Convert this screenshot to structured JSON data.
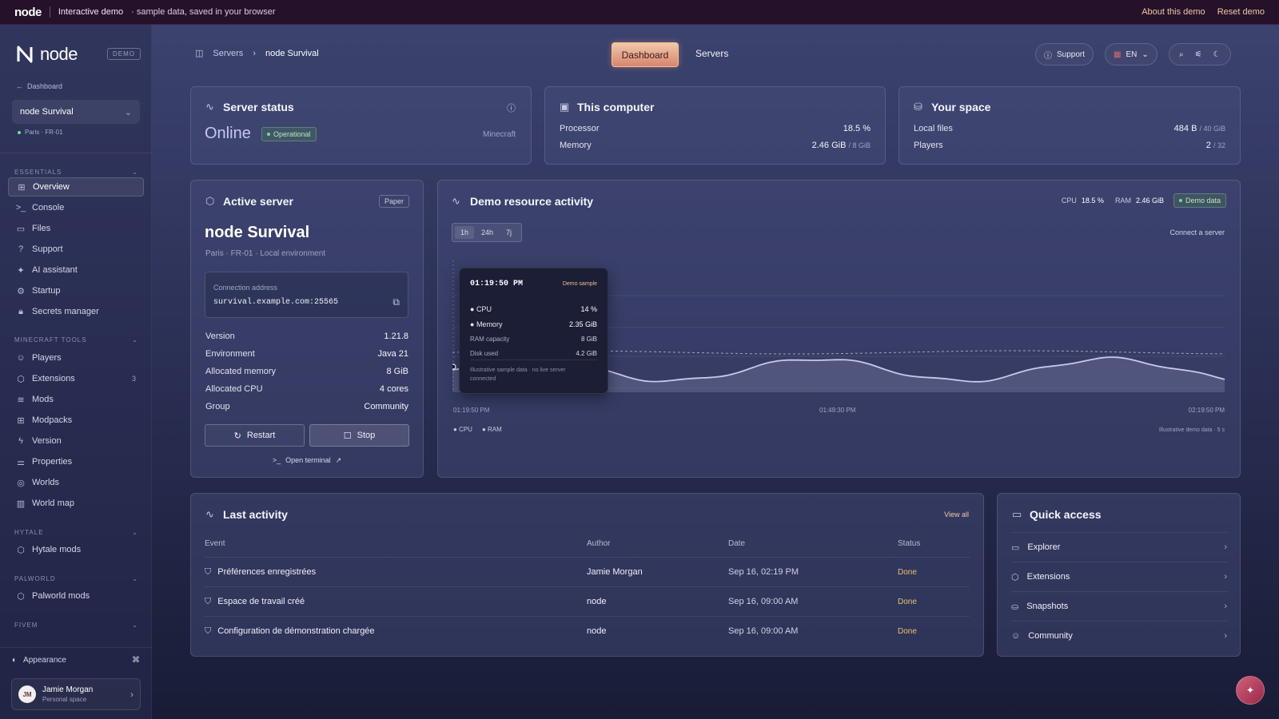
{
  "topbar": {
    "brand": "node",
    "title": "Interactive demo",
    "subtitle": "· sample data, saved in your browser",
    "about": "About this demo",
    "reset": "Reset demo"
  },
  "sidebar": {
    "logo_text": "node",
    "demo_tag": "DEMO",
    "back_label": "Dashboard",
    "server_name": "node Survival",
    "location": "Paris · FR-01",
    "sections": [
      {
        "title": "ESSENTIALS",
        "items": [
          {
            "label": "Overview",
            "icon": "grid-icon",
            "active": true
          },
          {
            "label": "Console",
            "icon": "terminal-icon"
          },
          {
            "label": "Files",
            "icon": "folder-icon"
          },
          {
            "label": "Support",
            "icon": "help-icon"
          },
          {
            "label": "AI assistant",
            "icon": "sparkle-icon"
          },
          {
            "label": "Startup",
            "icon": "gear-icon"
          },
          {
            "label": "Secrets manager",
            "icon": "lock-icon"
          }
        ]
      },
      {
        "title": "MINECRAFT TOOLS",
        "items": [
          {
            "label": "Players",
            "icon": "users-icon"
          },
          {
            "label": "Extensions",
            "icon": "cube-icon",
            "count": "3"
          },
          {
            "label": "Mods",
            "icon": "layers-icon"
          },
          {
            "label": "Modpacks",
            "icon": "grid-icon"
          },
          {
            "label": "Version",
            "icon": "bolt-icon"
          },
          {
            "label": "Properties",
            "icon": "sliders-icon"
          },
          {
            "label": "Worlds",
            "icon": "globe-icon"
          },
          {
            "label": "World map",
            "icon": "map-icon"
          }
        ]
      },
      {
        "title": "HYTALE",
        "items": [
          {
            "label": "Hytale mods",
            "icon": "cube-icon"
          }
        ]
      },
      {
        "title": "PALWORLD",
        "items": [
          {
            "label": "Palworld mods",
            "icon": "cube-icon"
          }
        ]
      },
      {
        "title": "FIVEM",
        "items": []
      }
    ],
    "appearance": "Appearance",
    "user": {
      "initials": "JM",
      "name": "Jamie Morgan",
      "space": "Personal space"
    }
  },
  "header": {
    "crumb_root": "Servers",
    "crumb_current": "node Survival",
    "tab_dashboard": "Dashboard",
    "tab_servers": "Servers",
    "support": "Support",
    "lang": "EN"
  },
  "server_status": {
    "title": "Server status",
    "state": "Online",
    "badge": "Operational",
    "game": "Minecraft"
  },
  "this_computer": {
    "title": "This computer",
    "processor_label": "Processor",
    "processor_value": "18.5 %",
    "memory_label": "Memory",
    "memory_value": "2.46 GiB",
    "memory_total": "/ 8 GiB"
  },
  "your_space": {
    "title": "Your space",
    "files_label": "Local files",
    "files_value": "484 B",
    "files_total": "/ 40 GiB",
    "players_label": "Players",
    "players_value": "2",
    "players_total": "/ 32"
  },
  "active_server": {
    "title": "Active server",
    "tag": "Paper",
    "name": "node Survival",
    "location": "Paris · FR-01 · Local environment",
    "conn_label": "Connection address",
    "conn_value": "survival.example.com:25565",
    "rows": [
      {
        "label": "Version",
        "value": "1.21.8"
      },
      {
        "label": "Environment",
        "value": "Java 21"
      },
      {
        "label": "Allocated memory",
        "value": "8 GiB"
      },
      {
        "label": "Allocated CPU",
        "value": "4 cores"
      },
      {
        "label": "Group",
        "value": "Community"
      }
    ],
    "restart": "Restart",
    "stop": "Stop",
    "terminal": "Open terminal"
  },
  "activity": {
    "title": "Demo resource activity",
    "cpu_label": "CPU",
    "cpu_value": "18.5 %",
    "ram_label": "RAM",
    "ram_value": "2.46 GiB",
    "badge": "Demo data",
    "ranges": [
      "1h",
      "24h",
      "7j"
    ],
    "connect": "Connect a server",
    "legend_cpu": "CPU",
    "legend_ram": "RAM",
    "note": "Illustrative demo data · 5 s",
    "x_ticks": [
      "01:19:50 PM",
      "01:49:30 PM",
      "02:19:50 PM"
    ],
    "tooltip": {
      "time": "01:19:50 PM",
      "tag": "Demo sample",
      "cpu_label": "CPU",
      "cpu_value": "14 %",
      "mem_label": "Memory",
      "mem_value": "2.35 GiB",
      "cap_label": "RAM capacity",
      "cap_value": "8 GiB",
      "disk_label": "Disk used",
      "disk_value": "4.2 GiB",
      "note1": "Illustrative sample data · no live server",
      "note2": "connected"
    }
  },
  "last_activity": {
    "title": "Last activity",
    "view_all": "View all",
    "columns": [
      "Event",
      "Author",
      "Date",
      "Status"
    ],
    "rows": [
      {
        "event": "Préférences enregistrées",
        "author": "Jamie Morgan",
        "date": "Sep 16, 02:19 PM",
        "status": "Done"
      },
      {
        "event": "Espace de travail créé",
        "author": "node",
        "date": "Sep 16, 09:00 AM",
        "status": "Done"
      },
      {
        "event": "Configuration de démonstration chargée",
        "author": "node",
        "date": "Sep 16, 09:00 AM",
        "status": "Done"
      }
    ]
  },
  "quick_access": {
    "title": "Quick access",
    "items": [
      {
        "label": "Explorer",
        "icon": "folder-icon"
      },
      {
        "label": "Extensions",
        "icon": "cube-icon"
      },
      {
        "label": "Snapshots",
        "icon": "drive-icon"
      },
      {
        "label": "Community",
        "icon": "users-icon"
      }
    ]
  },
  "colors": {
    "accent": "#e8a07a",
    "success": "#8fd07a",
    "status_done": "#e8c26a"
  }
}
